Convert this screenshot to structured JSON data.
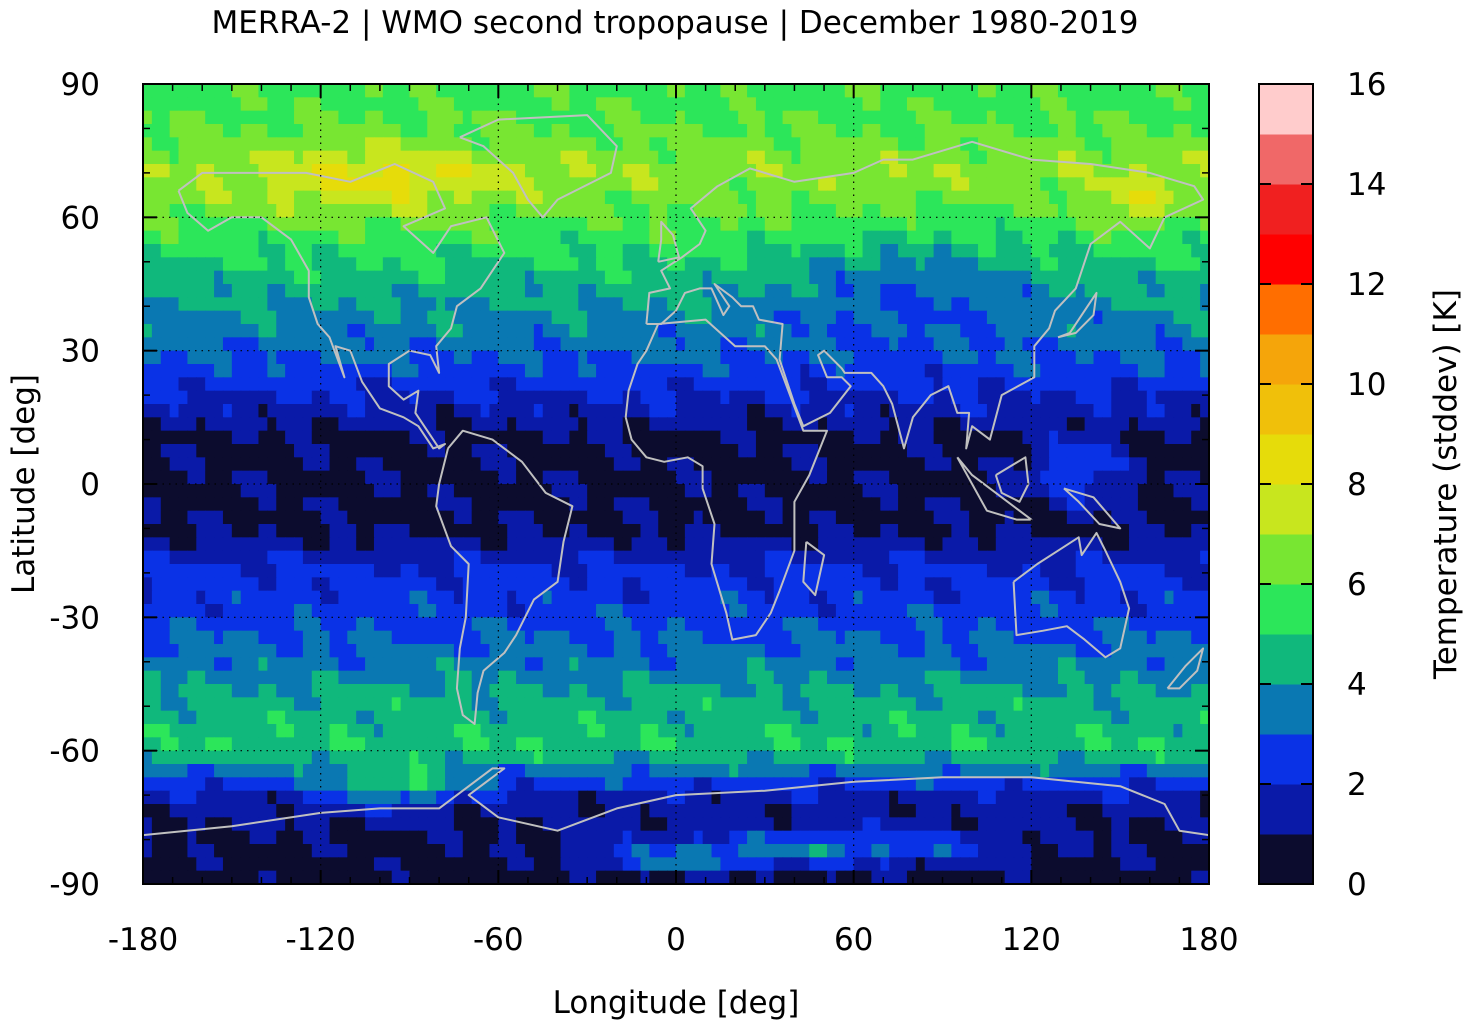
{
  "chart_data": {
    "type": "heatmap",
    "title": "MERRA-2 | WMO second tropopause | December 1980-2019",
    "xlabel": "Longitude [deg]",
    "ylabel": "Latitude [deg]",
    "xlim": [
      -180,
      180
    ],
    "ylim": [
      -90,
      90
    ],
    "xticks": [
      -180,
      -120,
      -60,
      0,
      60,
      120,
      180
    ],
    "xtick_labels": [
      "-180",
      "-120",
      "-60",
      "0",
      "60",
      "120",
      "180"
    ],
    "yticks": [
      90,
      60,
      30,
      0,
      -30,
      -60,
      -90
    ],
    "ytick_labels": [
      "90",
      "60",
      "30",
      "0",
      "-30",
      "-60",
      "-90"
    ],
    "grid": true,
    "colorbar": {
      "label": "Temperature (stddev) [K]",
      "range": [
        0,
        16
      ],
      "ticks": [
        0,
        2,
        4,
        6,
        8,
        10,
        12,
        14,
        16
      ],
      "tick_labels": [
        "0",
        "2",
        "4",
        "6",
        "8",
        "10",
        "12",
        "14",
        "16"
      ],
      "levels": [
        {
          "from": 0,
          "to": 1,
          "color": "#0c0c2e"
        },
        {
          "from": 1,
          "to": 2,
          "color": "#0a1aa8"
        },
        {
          "from": 2,
          "to": 3,
          "color": "#0a32e6"
        },
        {
          "from": 3,
          "to": 4,
          "color": "#0a78b2"
        },
        {
          "from": 4,
          "to": 5,
          "color": "#10b87c"
        },
        {
          "from": 5,
          "to": 6,
          "color": "#2ce65a"
        },
        {
          "from": 6,
          "to": 7,
          "color": "#78e632"
        },
        {
          "from": 7,
          "to": 8,
          "color": "#c8e61e"
        },
        {
          "from": 8,
          "to": 9,
          "color": "#e6dc0a"
        },
        {
          "from": 9,
          "to": 10,
          "color": "#f0c00a"
        },
        {
          "from": 10,
          "to": 11,
          "color": "#f5a50a"
        },
        {
          "from": 11,
          "to": 12,
          "color": "#ff6e00"
        },
        {
          "from": 12,
          "to": 13,
          "color": "#ff0000"
        },
        {
          "from": 13,
          "to": 14,
          "color": "#f02020"
        },
        {
          "from": 14,
          "to": 15,
          "color": "#f06868"
        },
        {
          "from": 15,
          "to": 16,
          "color": "#ffcccc"
        }
      ]
    },
    "zonal_profile_approx": [
      {
        "lat": 90,
        "value": 5.6
      },
      {
        "lat": 80,
        "value": 6.0
      },
      {
        "lat": 70,
        "value": 6.8
      },
      {
        "lat": 60,
        "value": 6.0
      },
      {
        "lat": 50,
        "value": 5.0
      },
      {
        "lat": 40,
        "value": 4.0
      },
      {
        "lat": 30,
        "value": 3.2
      },
      {
        "lat": 20,
        "value": 2.0
      },
      {
        "lat": 10,
        "value": 0.8
      },
      {
        "lat": 0,
        "value": 0.8
      },
      {
        "lat": -10,
        "value": 0.8
      },
      {
        "lat": -20,
        "value": 2.2
      },
      {
        "lat": -30,
        "value": 2.6
      },
      {
        "lat": -40,
        "value": 3.4
      },
      {
        "lat": -50,
        "value": 4.4
      },
      {
        "lat": -60,
        "value": 4.8
      },
      {
        "lat": -70,
        "value": 1.6
      },
      {
        "lat": -80,
        "value": 0.8
      },
      {
        "lat": -90,
        "value": 0.5
      }
    ],
    "coastline_color": "#c0c0c0",
    "grid_color": "#000000"
  }
}
